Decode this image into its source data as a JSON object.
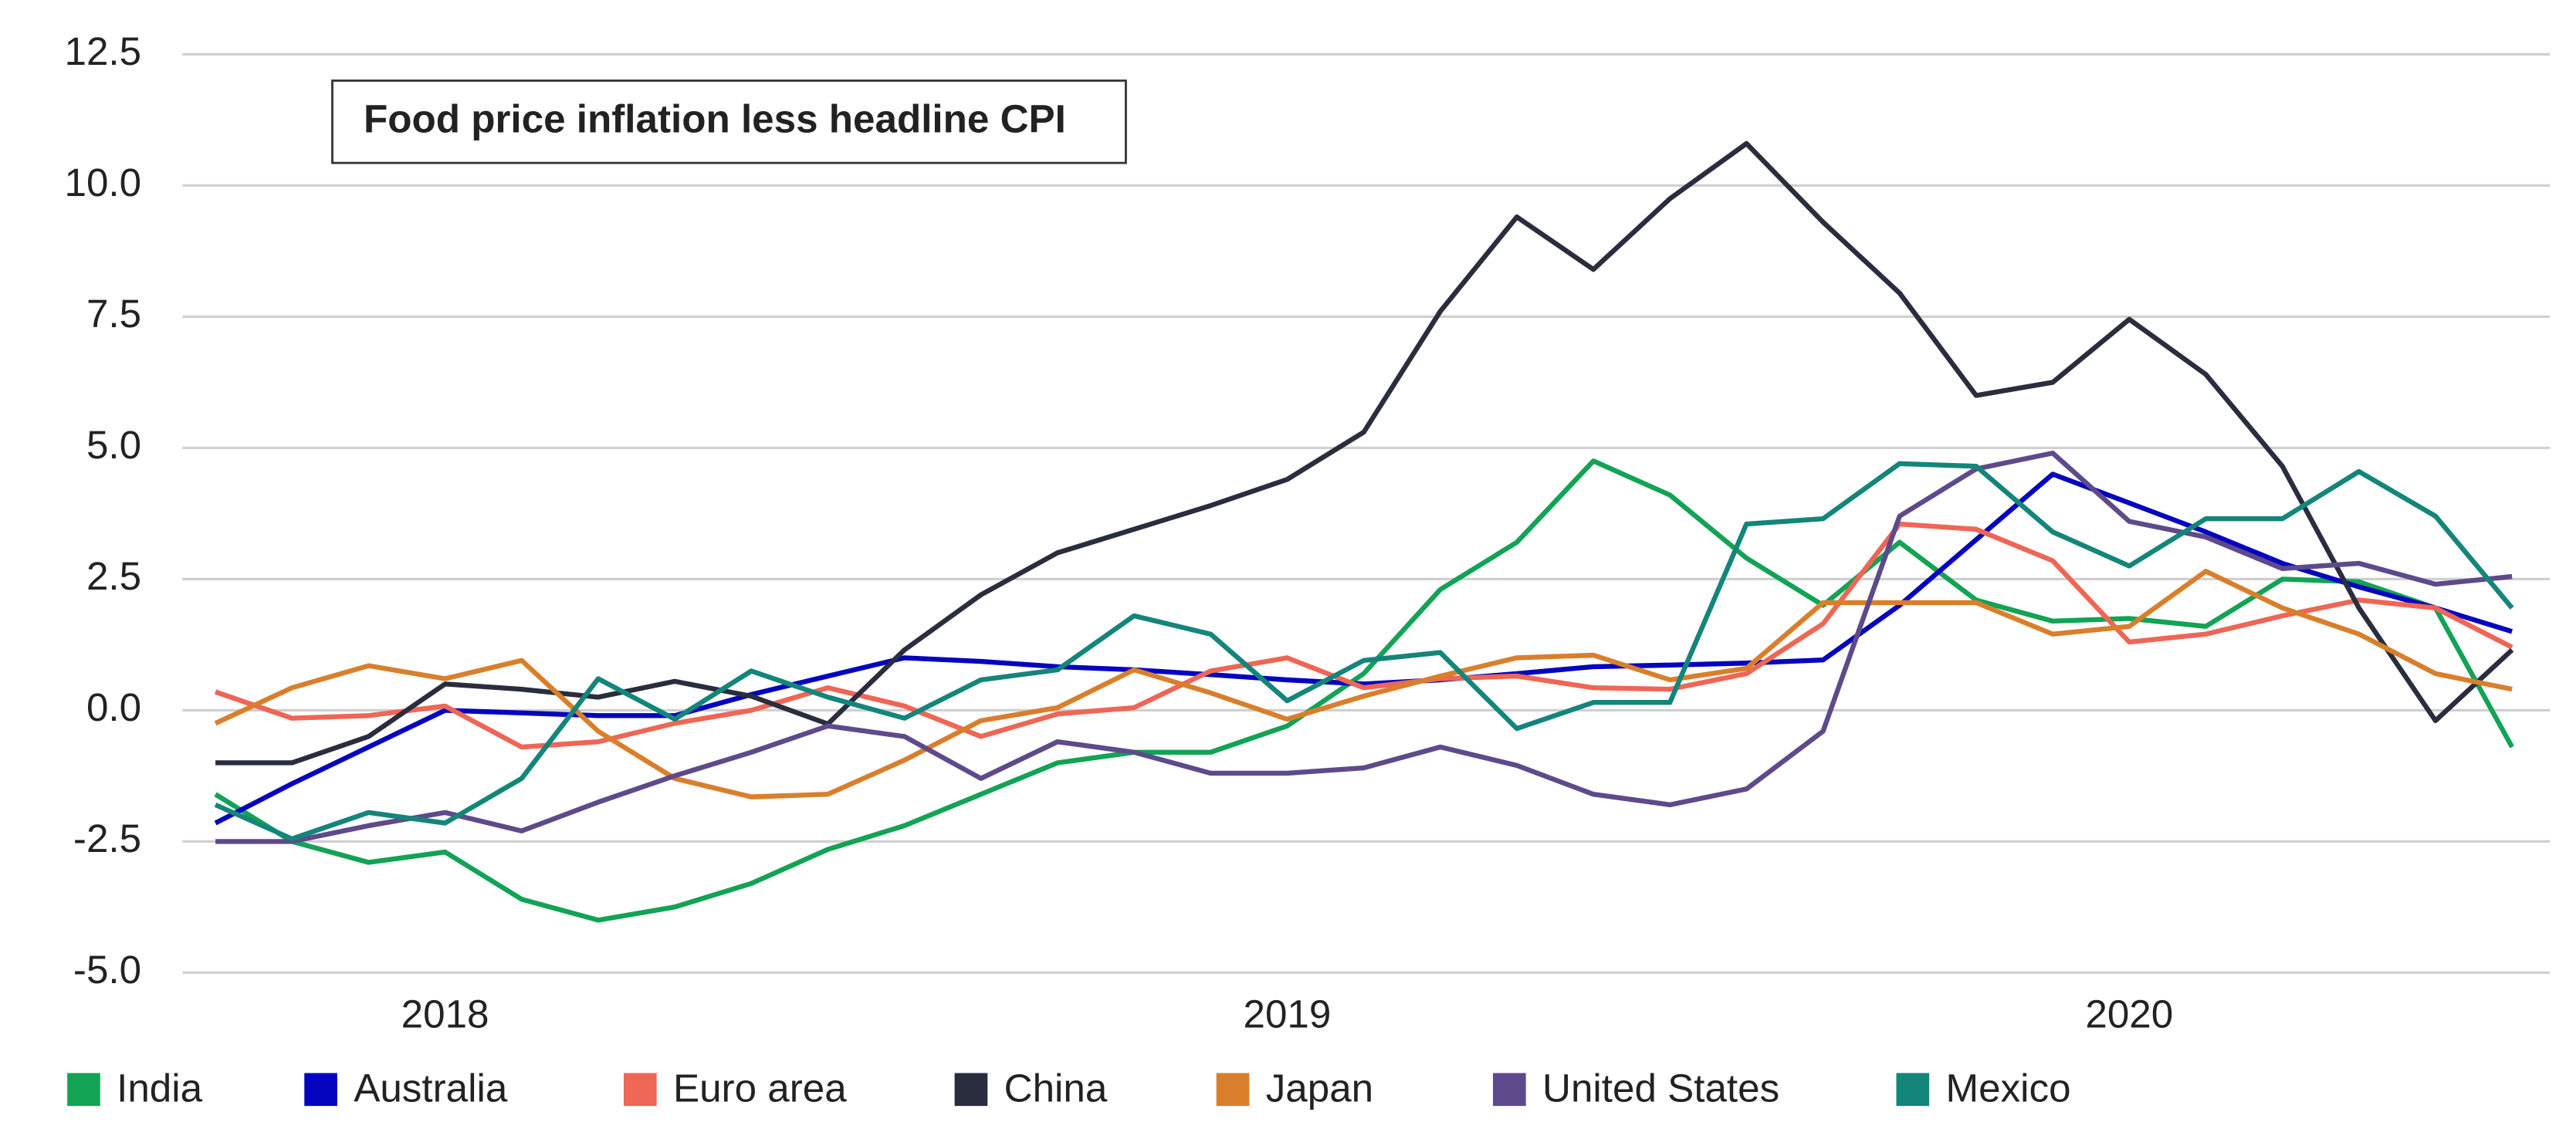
{
  "chart_data": {
    "type": "line",
    "annotation": "Food price inflation less headline CPI",
    "categories": [
      null,
      null,
      null,
      "2018",
      null,
      null,
      null,
      null,
      null,
      null,
      null,
      null,
      null,
      null,
      "2019",
      null,
      null,
      null,
      null,
      null,
      null,
      null,
      null,
      null,
      null,
      "2020",
      null,
      null,
      null,
      null,
      null
    ],
    "ylim": [
      -5,
      12.5
    ],
    "yticks": [
      {
        "value": -5,
        "label": "-5.0"
      },
      -2.5,
      {
        "value": 0,
        "label": "0.0"
      },
      2.5,
      {
        "value": 5,
        "label": "5.0"
      },
      7.5,
      {
        "value": 10,
        "label": "10.0"
      },
      12.5
    ],
    "grid": true,
    "legend": "bottom",
    "series": [
      {
        "name": "India",
        "color": "#12a355",
        "values": [
          -1.6,
          -2.5,
          -2.9,
          -2.7,
          -3.6,
          -4.0,
          -3.75,
          -3.3,
          -2.65,
          -2.2,
          -1.6,
          -1.0,
          -0.8,
          -0.8,
          -0.3,
          0.7,
          2.3,
          3.2,
          4.75,
          4.1,
          2.9,
          2.0,
          3.2,
          2.1,
          1.7,
          1.75,
          1.6,
          2.5,
          2.45,
          1.95,
          -0.7
        ]
      },
      {
        "name": "Australia",
        "color": "#0505c0",
        "values": [
          -2.15,
          -1.4,
          -0.7,
          0.0,
          -0.05,
          -0.1,
          -0.1,
          0.3,
          0.65,
          1.0,
          0.93,
          0.83,
          0.77,
          0.68,
          0.58,
          0.5,
          0.58,
          0.7,
          0.83,
          0.86,
          0.9,
          0.96,
          2.0,
          3.25,
          4.5,
          3.95,
          3.4,
          2.8,
          2.35,
          1.95,
          1.5
        ]
      },
      {
        "name": "Euro area",
        "color": "#ee6655",
        "values": [
          0.35,
          -0.15,
          -0.1,
          0.08,
          -0.7,
          -0.6,
          -0.25,
          0.0,
          0.43,
          0.08,
          -0.5,
          -0.07,
          0.05,
          0.75,
          1.0,
          0.43,
          0.6,
          0.65,
          0.43,
          0.4,
          0.7,
          1.65,
          3.55,
          3.45,
          2.85,
          1.3,
          1.45,
          1.8,
          2.1,
          1.95,
          1.2
        ]
      },
      {
        "name": "China",
        "color": "#2a2d3e",
        "values": [
          -1.0,
          -1.0,
          -0.5,
          0.5,
          0.4,
          0.25,
          0.55,
          0.27,
          -0.26,
          1.15,
          2.2,
          3.0,
          3.45,
          3.9,
          4.4,
          5.3,
          7.6,
          9.4,
          8.4,
          9.75,
          10.8,
          9.3,
          7.95,
          6.0,
          6.25,
          7.45,
          6.4,
          4.65,
          1.95,
          -0.2,
          1.15
        ]
      },
      {
        "name": "Japan",
        "color": "#d97f2c",
        "values": [
          -0.25,
          0.43,
          0.85,
          0.6,
          0.95,
          -0.4,
          -1.3,
          -1.65,
          -1.6,
          -0.95,
          -0.2,
          0.05,
          0.77,
          0.33,
          -0.17,
          0.27,
          0.65,
          1.0,
          1.05,
          0.58,
          0.8,
          2.05,
          2.05,
          2.05,
          1.45,
          1.6,
          2.65,
          1.95,
          1.45,
          0.7,
          0.4
        ]
      },
      {
        "name": "United States",
        "color": "#5e4a8b",
        "values": [
          -2.5,
          -2.5,
          -2.2,
          -1.95,
          -2.3,
          -1.75,
          -1.25,
          -0.8,
          -0.3,
          -0.5,
          -1.3,
          -0.6,
          -0.8,
          -1.2,
          -1.2,
          -1.1,
          -0.7,
          -1.05,
          -1.6,
          -1.8,
          -1.5,
          -0.4,
          3.7,
          4.6,
          4.9,
          3.6,
          3.3,
          2.7,
          2.8,
          2.4,
          2.55
        ]
      },
      {
        "name": "Mexico",
        "color": "#14857a",
        "values": [
          -1.8,
          -2.45,
          -1.95,
          -2.15,
          -1.3,
          0.6,
          -0.17,
          0.75,
          0.25,
          -0.15,
          0.58,
          0.77,
          1.8,
          1.45,
          0.18,
          0.95,
          1.1,
          -0.35,
          0.15,
          0.15,
          3.55,
          3.65,
          4.7,
          4.65,
          3.4,
          2.75,
          3.65,
          3.65,
          4.55,
          3.7,
          1.95
        ]
      }
    ]
  }
}
